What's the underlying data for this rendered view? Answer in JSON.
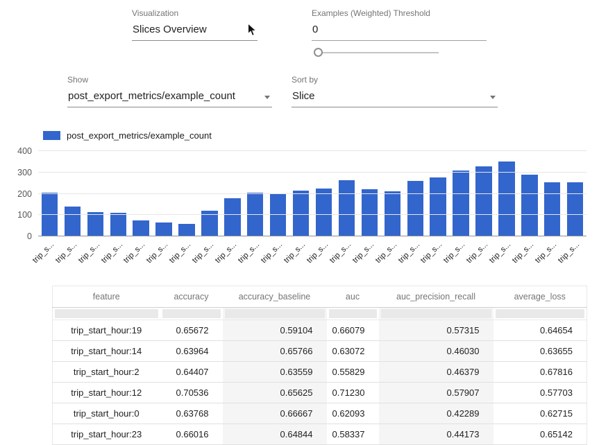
{
  "controls": {
    "visualization": {
      "label": "Visualization",
      "value": "Slices Overview"
    },
    "threshold": {
      "label": "Examples (Weighted) Threshold",
      "value": "0"
    },
    "show": {
      "label": "Show",
      "value": "post_export_metrics/example_count"
    },
    "sort_by": {
      "label": "Sort by",
      "value": "Slice"
    }
  },
  "chart_data": {
    "type": "bar",
    "legend": "post_export_metrics/example_count",
    "series_color": "#3366cc",
    "categories": [
      "trip_s...",
      "trip_s...",
      "trip_s...",
      "trip_s...",
      "trip_s...",
      "trip_s...",
      "trip_s...",
      "trip_s...",
      "trip_s...",
      "trip_s...",
      "trip_s...",
      "trip_s...",
      "trip_s...",
      "trip_s...",
      "trip_s...",
      "trip_s...",
      "trip_s...",
      "trip_s...",
      "trip_s...",
      "trip_s...",
      "trip_s...",
      "trip_s...",
      "trip_s...",
      "trip_s..."
    ],
    "values": [
      205,
      140,
      115,
      110,
      75,
      65,
      60,
      120,
      180,
      205,
      200,
      215,
      225,
      265,
      220,
      210,
      260,
      275,
      310,
      330,
      350,
      290,
      255,
      255
    ],
    "ylim": [
      0,
      400
    ],
    "yticks": [
      0,
      100,
      200,
      300,
      400
    ],
    "legend_position": "top-left",
    "grid": true
  },
  "table": {
    "columns": [
      "feature",
      "accuracy",
      "accuracy_baseline",
      "auc",
      "auc_precision_recall",
      "average_loss"
    ],
    "shaded_columns": [
      2,
      4
    ],
    "rows": [
      [
        "trip_start_hour:19",
        "0.65672",
        "0.59104",
        "0.66079",
        "0.57315",
        "0.64654"
      ],
      [
        "trip_start_hour:14",
        "0.63964",
        "0.65766",
        "0.63072",
        "0.46030",
        "0.63655"
      ],
      [
        "trip_start_hour:2",
        "0.64407",
        "0.63559",
        "0.55829",
        "0.46379",
        "0.67816"
      ],
      [
        "trip_start_hour:12",
        "0.70536",
        "0.65625",
        "0.71230",
        "0.57907",
        "0.57703"
      ],
      [
        "trip_start_hour:0",
        "0.63768",
        "0.66667",
        "0.62093",
        "0.42289",
        "0.62715"
      ],
      [
        "trip_start_hour:23",
        "0.66016",
        "0.64844",
        "0.58337",
        "0.44173",
        "0.65142"
      ]
    ]
  }
}
